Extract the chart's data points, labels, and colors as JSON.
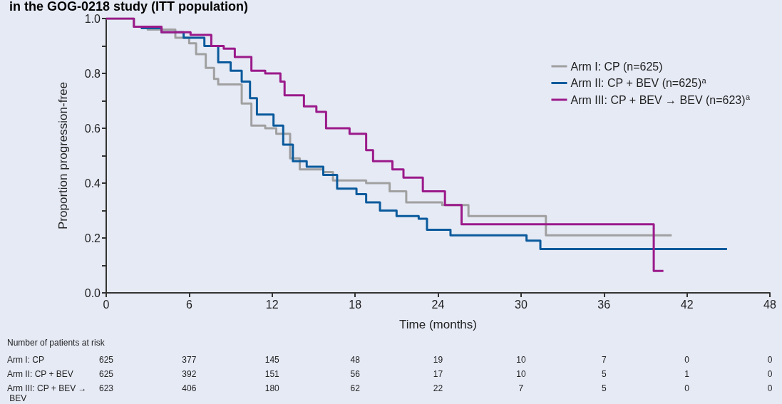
{
  "chart_data": {
    "type": "step",
    "title": "in the GOG-0218 study (ITT population)",
    "xlabel": "Time (months)",
    "ylabel": "Proportion progression-free",
    "xlim": [
      0,
      48
    ],
    "xticks": [
      0,
      6,
      12,
      18,
      24,
      30,
      36,
      42,
      48
    ],
    "ylim": [
      0,
      1
    ],
    "yticks": [
      {
        "value": 0,
        "label": "0.0"
      },
      {
        "value": 0.1,
        "label": null
      },
      {
        "value": 0.2,
        "label": "0.2"
      },
      {
        "value": 0.3,
        "label": null
      },
      {
        "value": 0.4,
        "label": "0.4"
      },
      {
        "value": 0.5,
        "label": null
      },
      {
        "value": 0.6,
        "label": "0.6"
      },
      {
        "value": 0.7,
        "label": null
      },
      {
        "value": 0.8,
        "label": "0.8"
      },
      {
        "value": 0.9,
        "label": null
      },
      {
        "value": 1,
        "label": "1.0"
      }
    ],
    "grid": false,
    "legend": "top right",
    "marker": "none",
    "line_style": "solid",
    "series": [
      {
        "name": "Arm I: CP (n=625)",
        "color": "#a0a0a0",
        "x": [
          0,
          2,
          3,
          5,
          6,
          6.5,
          7.2,
          7.8,
          8.1,
          9.2,
          9.8,
          10.5,
          11.5,
          12.3,
          13.3,
          14,
          15.7,
          16.4,
          18.8,
          20.5,
          21.7,
          24.3,
          26.2,
          31.8,
          40.9
        ],
        "values": [
          1,
          0.97,
          0.96,
          0.93,
          0.91,
          0.87,
          0.82,
          0.78,
          0.76,
          0.76,
          0.69,
          0.61,
          0.6,
          0.58,
          0.49,
          0.45,
          0.44,
          0.41,
          0.4,
          0.37,
          0.33,
          0.32,
          0.28,
          0.21,
          0.21
        ]
      },
      {
        "name": "Arm II: CP + BEV (n=625)$^{a}$",
        "color": "#0a5a9c",
        "x": [
          2.5,
          4,
          5.6,
          7.1,
          8.1,
          9,
          9.8,
          10.4,
          10.9,
          12.1,
          12.8,
          13.5,
          14.5,
          15.7,
          16.7,
          18.1,
          18.8,
          19.8,
          21,
          22.6,
          23.2,
          24.9,
          30.4,
          31.4,
          44.9
        ],
        "values": [
          0.965,
          0.95,
          0.93,
          0.9,
          0.84,
          0.81,
          0.77,
          0.71,
          0.65,
          0.61,
          0.54,
          0.48,
          0.46,
          0.43,
          0.38,
          0.36,
          0.33,
          0.3,
          0.28,
          0.27,
          0.23,
          0.21,
          0.19,
          0.16,
          0.16
        ]
      },
      {
        "name": "Arm III: CP + BEV → BEV (n=623)$^{a}$",
        "color": "#9b1a8a",
        "x": [
          0,
          2,
          4,
          6.1,
          7.6,
          8.5,
          9.3,
          10.5,
          11.5,
          12.6,
          12.9,
          14.3,
          15.2,
          15.9,
          17.6,
          18.8,
          19.3,
          20.7,
          21.5,
          22.9,
          24.5,
          25.7,
          39.6,
          40.3
        ],
        "values": [
          1,
          0.97,
          0.95,
          0.94,
          0.9,
          0.89,
          0.86,
          0.81,
          0.8,
          0.77,
          0.72,
          0.68,
          0.66,
          0.6,
          0.58,
          0.52,
          0.48,
          0.45,
          0.42,
          0.37,
          0.32,
          0.25,
          0.08,
          0.08
        ]
      }
    ],
    "annotations": [
      "Number of patients at risk",
      "Arm I: CP",
      "625",
      "377",
      "145",
      "48",
      "19",
      "10",
      "7",
      "0",
      "0",
      "Arm II: CP + BEV",
      "625",
      "392",
      "151",
      "56",
      "17",
      "10",
      "5",
      "1",
      "0",
      "Arm III: CP + BEV → BEV",
      "623",
      "406",
      "180",
      "62",
      "22",
      "7",
      "5",
      "0",
      "0"
    ]
  }
}
